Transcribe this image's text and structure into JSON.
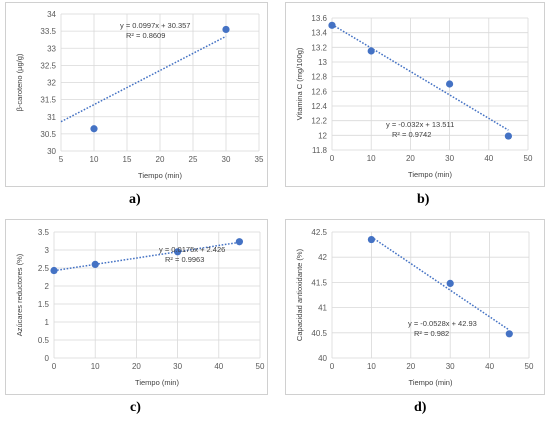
{
  "chart_data": [
    {
      "type": "scatter",
      "panel_label": "a)",
      "xlabel": "Tiempo  (min)",
      "ylabel": "β-caroteno (µg/g)",
      "xlim": [
        5,
        35
      ],
      "xticks": [
        5,
        10,
        15,
        20,
        25,
        30,
        35
      ],
      "ylim": [
        30,
        34
      ],
      "yticks": [
        30,
        30.5,
        31,
        31.5,
        32,
        32.5,
        33,
        33.5,
        34
      ],
      "grid": true,
      "points": [
        {
          "x": 10,
          "y": 30.65
        },
        {
          "x": 30,
          "y": 33.55
        }
      ],
      "trendline": {
        "slope": 0.0997,
        "intercept": 30.357,
        "x_range": [
          5,
          30
        ]
      },
      "equation": "y = 0.0997x + 30.357",
      "r2": "R² = 0.8609"
    },
    {
      "type": "scatter",
      "panel_label": "b)",
      "xlabel": "Tiempo  (min)",
      "ylabel": "Vitamina C (mg/100g)",
      "xlim": [
        0,
        50
      ],
      "xticks": [
        0,
        10,
        20,
        30,
        40,
        50
      ],
      "ylim": [
        11.8,
        13.6
      ],
      "yticks": [
        11.8,
        12,
        12.2,
        12.4,
        12.6,
        12.8,
        13,
        13.2,
        13.4,
        13.6
      ],
      "grid": true,
      "points": [
        {
          "x": 0,
          "y": 13.5
        },
        {
          "x": 10,
          "y": 13.15
        },
        {
          "x": 30,
          "y": 12.7
        },
        {
          "x": 45,
          "y": 11.99
        }
      ],
      "trendline": {
        "slope": -0.032,
        "intercept": 13.511,
        "x_range": [
          0,
          45
        ]
      },
      "equation": "y = -0.032x + 13.511",
      "r2": "R² = 0.9742"
    },
    {
      "type": "scatter",
      "panel_label": "c)",
      "xlabel": "Tiempo (min)",
      "ylabel": "Azúcares reductores (%)",
      "xlim": [
        0,
        50
      ],
      "xticks": [
        0,
        10,
        20,
        30,
        40,
        50
      ],
      "ylim": [
        0,
        3.5
      ],
      "yticks": [
        0,
        0.5,
        1,
        1.5,
        2,
        2.5,
        3,
        3.5
      ],
      "grid": true,
      "points": [
        {
          "x": 0,
          "y": 2.43
        },
        {
          "x": 10,
          "y": 2.6
        },
        {
          "x": 30,
          "y": 2.95
        },
        {
          "x": 45,
          "y": 3.23
        }
      ],
      "trendline": {
        "slope": 0.0175,
        "intercept": 2.426,
        "x_range": [
          0,
          45
        ]
      },
      "equation": "y = 0.0175x + 2.426",
      "r2": "R² = 0.9963"
    },
    {
      "type": "scatter",
      "panel_label": "d)",
      "xlabel": "Tiempo (min)",
      "ylabel": "Capacidad antioxidante (%)",
      "xlim": [
        0,
        50
      ],
      "xticks": [
        0,
        10,
        20,
        30,
        40,
        50
      ],
      "ylim": [
        40,
        42.5
      ],
      "yticks": [
        40,
        40.5,
        41,
        41.5,
        42,
        42.5
      ],
      "grid": true,
      "points": [
        {
          "x": 10,
          "y": 42.35
        },
        {
          "x": 30,
          "y": 41.48
        },
        {
          "x": 45,
          "y": 40.48
        }
      ],
      "trendline": {
        "slope": -0.0528,
        "intercept": 42.93,
        "x_range": [
          10,
          45
        ]
      },
      "equation": "y = -0.0528x + 42.93",
      "r2": "R² = 0.982"
    }
  ]
}
